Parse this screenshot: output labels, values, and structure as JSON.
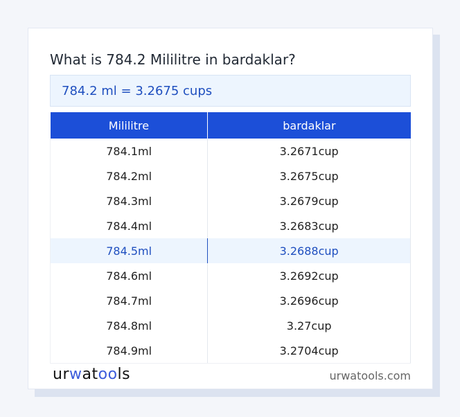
{
  "title": "What is 784.2 Mililitre in bardaklar?",
  "result": "784.2 ml = 3.2675 cups",
  "table": {
    "headers": [
      "Mililitre",
      "bardaklar"
    ],
    "rows": [
      [
        "784.1ml",
        "3.2671cup"
      ],
      [
        "784.2ml",
        "3.2675cup"
      ],
      [
        "784.3ml",
        "3.2679cup"
      ],
      [
        "784.4ml",
        "3.2683cup"
      ],
      [
        "784.5ml",
        "3.2688cup"
      ],
      [
        "784.6ml",
        "3.2692cup"
      ],
      [
        "784.7ml",
        "3.2696cup"
      ],
      [
        "784.8ml",
        "3.27cup"
      ],
      [
        "784.9ml",
        "3.2704cup"
      ]
    ],
    "highlighted_row": 4
  },
  "footer": {
    "logo": "urwatools",
    "logo_parts": [
      "ur",
      "w",
      "at",
      "oo",
      "ls"
    ],
    "site": "urwatools.com"
  },
  "colors": {
    "accent": "#1c4fd8",
    "highlight_bg": "#edf5fe"
  }
}
